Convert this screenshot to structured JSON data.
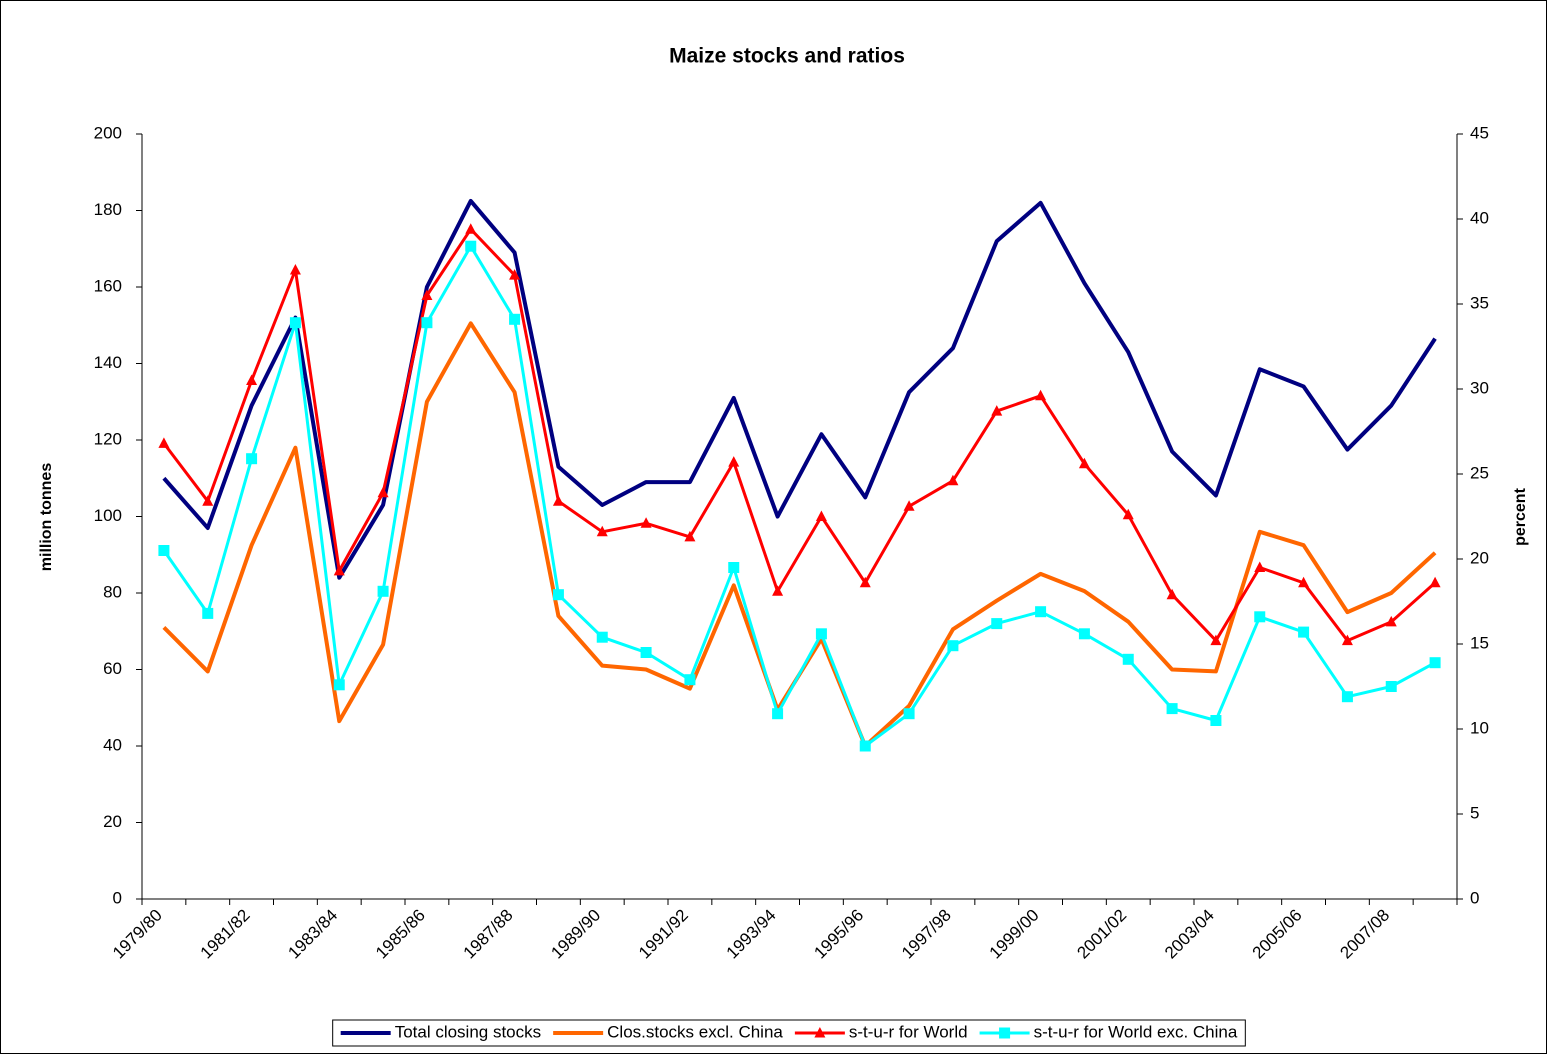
{
  "chart_data": {
    "type": "line",
    "title": "Maize stocks and ratios",
    "y_label": "million tonnes",
    "y2_label": "percent",
    "categories": [
      "1979/80",
      null,
      "1981/82",
      null,
      "1983/84",
      null,
      "1985/86",
      null,
      "1987/88",
      null,
      "1989/90",
      null,
      "1991/92",
      null,
      "1993/94",
      null,
      "1995/96",
      null,
      "1997/98",
      null,
      "1999/00",
      null,
      "2001/02",
      null,
      "2003/04",
      null,
      "2005/06",
      null,
      "2007/08",
      null
    ],
    "ylim": [
      0,
      200
    ],
    "yticks": [
      0,
      20,
      40,
      60,
      80,
      100,
      120,
      140,
      160,
      180,
      200
    ],
    "y2lim": [
      0,
      45
    ],
    "y2ticks": [
      0,
      5,
      10,
      15,
      20,
      25,
      30,
      35,
      40,
      45
    ],
    "legend": "bottom",
    "series": [
      {
        "name": "Total closing stocks",
        "color": "#000080",
        "axis": "y",
        "marker": "none",
        "values": [
          110,
          97,
          129,
          152,
          84,
          103,
          160,
          182.5,
          169,
          113,
          103,
          109,
          109,
          131,
          100,
          121.5,
          105,
          132.5,
          144,
          172,
          182,
          161,
          143,
          117,
          105.5,
          138.5,
          134,
          117.5,
          129,
          146.5
        ]
      },
      {
        "name": "Clos.stocks excl. China",
        "color": "#ff6600",
        "axis": "y",
        "marker": "none",
        "values": [
          71,
          59.5,
          92.5,
          118,
          46.5,
          66.5,
          130,
          150.5,
          132.5,
          74,
          61,
          60,
          55,
          82,
          49.5,
          68,
          40,
          50.5,
          70.5,
          78,
          85,
          80.5,
          72.5,
          60,
          59.5,
          96,
          92.5,
          75,
          80,
          90.5
        ]
      },
      {
        "name": "s-t-u-r for World",
        "color": "#ff0000",
        "axis": "y2",
        "marker": "triangle",
        "values": [
          26.8,
          23.4,
          30.5,
          37,
          19.3,
          23.9,
          35.5,
          39.4,
          36.7,
          23.4,
          21.6,
          22.1,
          21.3,
          25.7,
          18.1,
          22.5,
          18.6,
          23.1,
          24.6,
          28.7,
          29.6,
          25.6,
          22.6,
          17.9,
          15.2,
          19.5,
          18.6,
          15.2,
          16.3,
          18.6
        ]
      },
      {
        "name": "s-t-u-r for World exc. China",
        "color": "#00ffff",
        "axis": "y2",
        "marker": "square",
        "values": [
          20.5,
          16.8,
          25.9,
          33.9,
          12.6,
          18.1,
          33.9,
          38.4,
          34.1,
          17.9,
          15.4,
          14.5,
          12.9,
          19.5,
          10.9,
          15.6,
          9,
          10.9,
          14.9,
          16.2,
          16.9,
          15.6,
          14.1,
          11.2,
          10.5,
          16.6,
          15.7,
          11.9,
          12.5,
          13.9
        ]
      }
    ]
  }
}
